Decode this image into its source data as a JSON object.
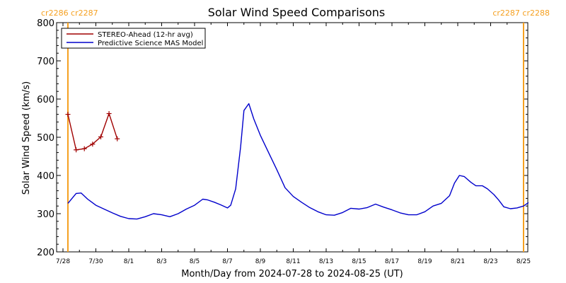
{
  "chart_data": {
    "type": "line",
    "title": "Solar Wind Speed Comparisons",
    "xlabel": "Month/Day from 2024-07-28 to 2024-08-25 (UT)",
    "ylabel": "Solar Wind Speed (km/s)",
    "xlim": [
      0,
      28
    ],
    "ylim": [
      200,
      800
    ],
    "y_ticks": [
      200,
      300,
      400,
      500,
      600,
      700,
      800
    ],
    "x_ticks": [
      {
        "day": 0,
        "label": "7/28"
      },
      {
        "day": 2,
        "label": "7/30"
      },
      {
        "day": 4,
        "label": "8/1"
      },
      {
        "day": 6,
        "label": "8/3"
      },
      {
        "day": 8,
        "label": "8/5"
      },
      {
        "day": 10,
        "label": "8/7"
      },
      {
        "day": 12,
        "label": "8/9"
      },
      {
        "day": 14,
        "label": "8/11"
      },
      {
        "day": 16,
        "label": "8/13"
      },
      {
        "day": 18,
        "label": "8/15"
      },
      {
        "day": 20,
        "label": "8/17"
      },
      {
        "day": 22,
        "label": "8/19"
      },
      {
        "day": 24,
        "label": "8/21"
      },
      {
        "day": 26,
        "label": "8/23"
      },
      {
        "day": 28,
        "label": "8/25"
      }
    ],
    "grid": false,
    "legend_position": "top-left",
    "carrington_markers": [
      {
        "day": 0.3,
        "label": "cr2286 cr2287",
        "color": "#f5a020",
        "label_side": "left"
      },
      {
        "day": 28.0,
        "label": "cr2287 cr2288",
        "color": "#f5a020",
        "label_side": "right"
      }
    ],
    "series": [
      {
        "name": "STEREO-Ahead (12-hr avg)",
        "color": "#a00000",
        "marker": "plus",
        "points": [
          [
            0.3,
            560
          ],
          [
            0.8,
            467
          ],
          [
            1.3,
            470
          ],
          [
            1.8,
            482
          ],
          [
            2.3,
            501
          ],
          [
            2.8,
            562
          ],
          [
            3.3,
            496
          ]
        ]
      },
      {
        "name": "Predictive Science MAS Model",
        "color": "#0000cc",
        "marker": "none",
        "points": [
          [
            0.3,
            327
          ],
          [
            0.8,
            353
          ],
          [
            1.1,
            354
          ],
          [
            1.5,
            338
          ],
          [
            2.0,
            322
          ],
          [
            2.5,
            312
          ],
          [
            3.0,
            302
          ],
          [
            3.5,
            293
          ],
          [
            4.0,
            287
          ],
          [
            4.5,
            286
          ],
          [
            5.0,
            292
          ],
          [
            5.5,
            300
          ],
          [
            6.0,
            297
          ],
          [
            6.5,
            292
          ],
          [
            7.0,
            300
          ],
          [
            7.5,
            312
          ],
          [
            8.0,
            322
          ],
          [
            8.5,
            338
          ],
          [
            8.8,
            336
          ],
          [
            9.2,
            330
          ],
          [
            9.6,
            323
          ],
          [
            10.0,
            315
          ],
          [
            10.2,
            322
          ],
          [
            10.5,
            365
          ],
          [
            10.8,
            475
          ],
          [
            11.0,
            570
          ],
          [
            11.3,
            588
          ],
          [
            11.6,
            548
          ],
          [
            12.0,
            505
          ],
          [
            12.5,
            460
          ],
          [
            13.0,
            415
          ],
          [
            13.5,
            368
          ],
          [
            14.0,
            345
          ],
          [
            14.5,
            330
          ],
          [
            15.0,
            316
          ],
          [
            15.5,
            305
          ],
          [
            16.0,
            297
          ],
          [
            16.5,
            296
          ],
          [
            17.0,
            303
          ],
          [
            17.5,
            314
          ],
          [
            18.0,
            312
          ],
          [
            18.5,
            316
          ],
          [
            19.0,
            325
          ],
          [
            19.5,
            317
          ],
          [
            20.0,
            310
          ],
          [
            20.5,
            302
          ],
          [
            21.0,
            297
          ],
          [
            21.5,
            297
          ],
          [
            22.0,
            305
          ],
          [
            22.5,
            320
          ],
          [
            23.0,
            327
          ],
          [
            23.5,
            347
          ],
          [
            23.8,
            380
          ],
          [
            24.1,
            400
          ],
          [
            24.4,
            397
          ],
          [
            24.8,
            382
          ],
          [
            25.1,
            373
          ],
          [
            25.5,
            373
          ],
          [
            25.8,
            365
          ],
          [
            26.2,
            350
          ],
          [
            26.5,
            335
          ],
          [
            26.8,
            318
          ],
          [
            27.2,
            313
          ],
          [
            27.6,
            315
          ],
          [
            28.0,
            320
          ],
          [
            28.3,
            329
          ]
        ]
      }
    ]
  }
}
